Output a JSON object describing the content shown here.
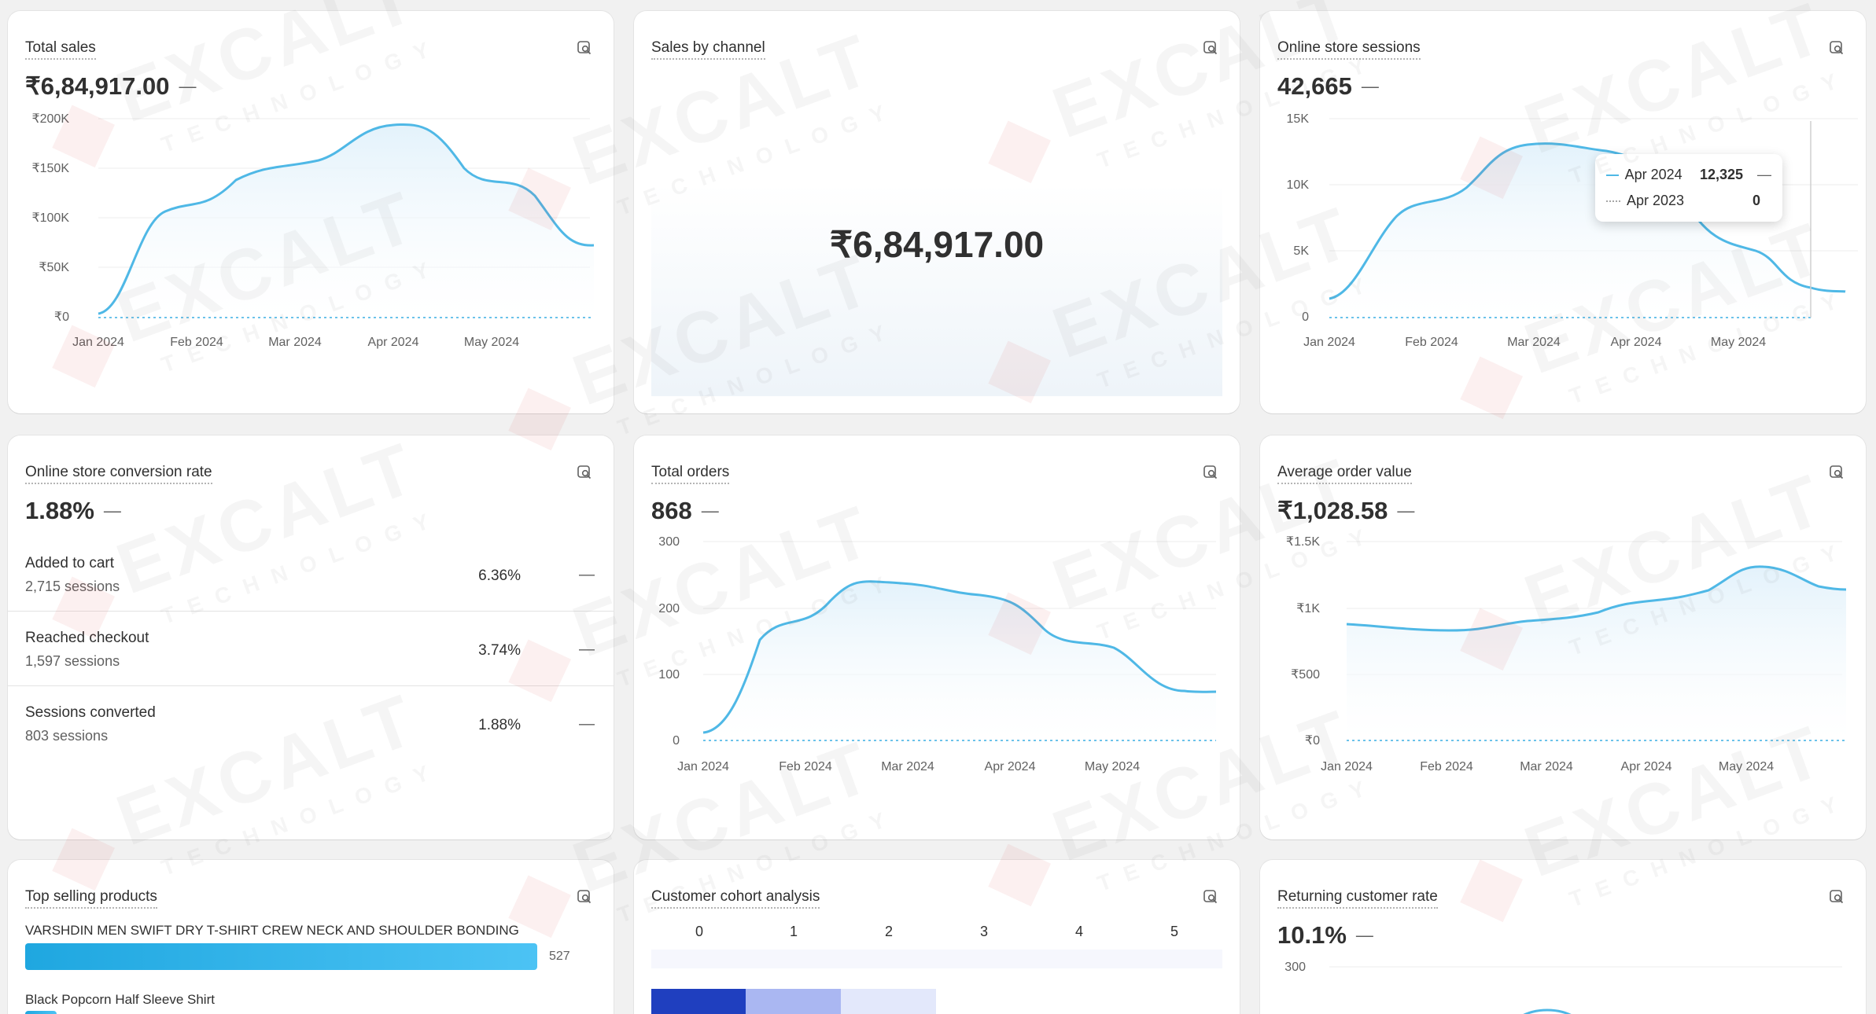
{
  "cards": {
    "total_sales": {
      "title": "Total sales",
      "value": "₹6,84,917.00",
      "dash": "—",
      "y_ticks": [
        "₹200K",
        "₹150K",
        "₹100K",
        "₹50K",
        "₹0"
      ],
      "x_ticks": [
        "Jan 2024",
        "Feb 2024",
        "Mar 2024",
        "Apr 2024",
        "May 2024"
      ]
    },
    "sales_by_channel": {
      "title": "Sales by channel",
      "value": "₹6,84,917.00"
    },
    "online_sessions": {
      "title": "Online store sessions",
      "value": "42,665",
      "dash": "—",
      "y_ticks": [
        "15K",
        "10K",
        "5K",
        "0"
      ],
      "x_ticks": [
        "Jan 2024",
        "Feb 2024",
        "Mar 2024",
        "Apr 2024",
        "May 2024"
      ],
      "tooltip": {
        "row1_label": "Apr 2024",
        "row1_value": "12,325",
        "row1_dash": "—",
        "row2_label": "Apr 2023",
        "row2_value": "0"
      }
    },
    "conversion": {
      "title": "Online store conversion rate",
      "value": "1.88%",
      "dash": "—",
      "rows": [
        {
          "label": "Added to cart",
          "sub": "2,715 sessions",
          "pct": "6.36%",
          "dash": "—"
        },
        {
          "label": "Reached checkout",
          "sub": "1,597 sessions",
          "pct": "3.74%",
          "dash": "—"
        },
        {
          "label": "Sessions converted",
          "sub": "803 sessions",
          "pct": "1.88%",
          "dash": "—"
        }
      ]
    },
    "total_orders": {
      "title": "Total orders",
      "value": "868",
      "dash": "—",
      "y_ticks": [
        "300",
        "200",
        "100",
        "0"
      ],
      "x_ticks": [
        "Jan 2024",
        "Feb 2024",
        "Mar 2024",
        "Apr 2024",
        "May 2024"
      ]
    },
    "aov": {
      "title": "Average order value",
      "value": "₹1,028.58",
      "dash": "—",
      "y_ticks": [
        "₹1.5K",
        "₹1K",
        "₹500",
        "₹0"
      ],
      "x_ticks": [
        "Jan 2024",
        "Feb 2024",
        "Mar 2024",
        "Apr 2024",
        "May 2024"
      ]
    },
    "top_products": {
      "title": "Top selling products",
      "items": [
        {
          "name": "VARSHDIN MEN SWIFT DRY T-SHIRT CREW NECK AND SHOULDER BONDING",
          "value": "527",
          "fraction": 1.0
        },
        {
          "name": "Black Popcorn Half Sleeve Shirt",
          "value": "",
          "fraction": 0.06
        }
      ]
    },
    "cohort": {
      "title": "Customer cohort analysis",
      "columns": [
        "0",
        "1",
        "2",
        "3",
        "4",
        "5"
      ]
    },
    "returning": {
      "title": "Returning customer rate",
      "value": "10.1%",
      "dash": "—",
      "y_ticks": [
        "300"
      ]
    }
  },
  "watermark": {
    "brand": "EXCALT",
    "sub": "TECHNOLOGY"
  },
  "colors": {
    "line": "#4fb8e6",
    "area_top": "#e3f2fb",
    "baseline_dotted": "#6cc3ea",
    "bar": "#1fa7e0",
    "cohort_dark": "#1f3fbf",
    "cohort_mid": "#aab7f2",
    "cohort_light": "#e3e8fb"
  }
}
